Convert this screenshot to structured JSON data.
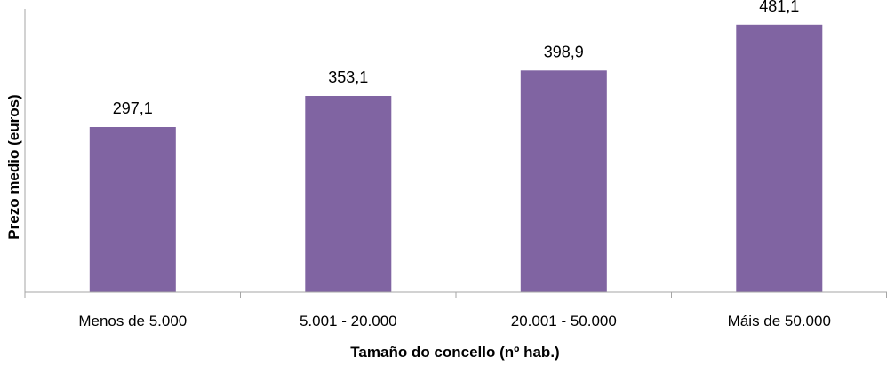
{
  "chart_data": {
    "type": "bar",
    "categories": [
      "Menos de 5.000",
      "5.001 - 20.000",
      "20.001 - 50.000",
      "Máis de 50.000"
    ],
    "values": [
      297.1,
      353.1,
      398.9,
      481.1
    ],
    "data_labels": [
      "297,1",
      "353,1",
      "398,9",
      "481,1"
    ],
    "xlabel": "Tamaño do concello (nº hab.)",
    "ylabel": "Prezo medio (euros)",
    "ylim": [
      0,
      500
    ],
    "grid": false,
    "bar_color": "#8064a2",
    "axis_color": "#a6a6a6"
  }
}
